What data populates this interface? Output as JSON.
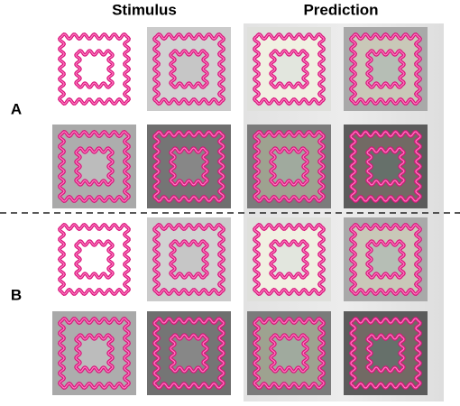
{
  "header": {
    "columns": [
      "Stimulus",
      "Prediction"
    ]
  },
  "panels": [
    "A",
    "B"
  ]
}
